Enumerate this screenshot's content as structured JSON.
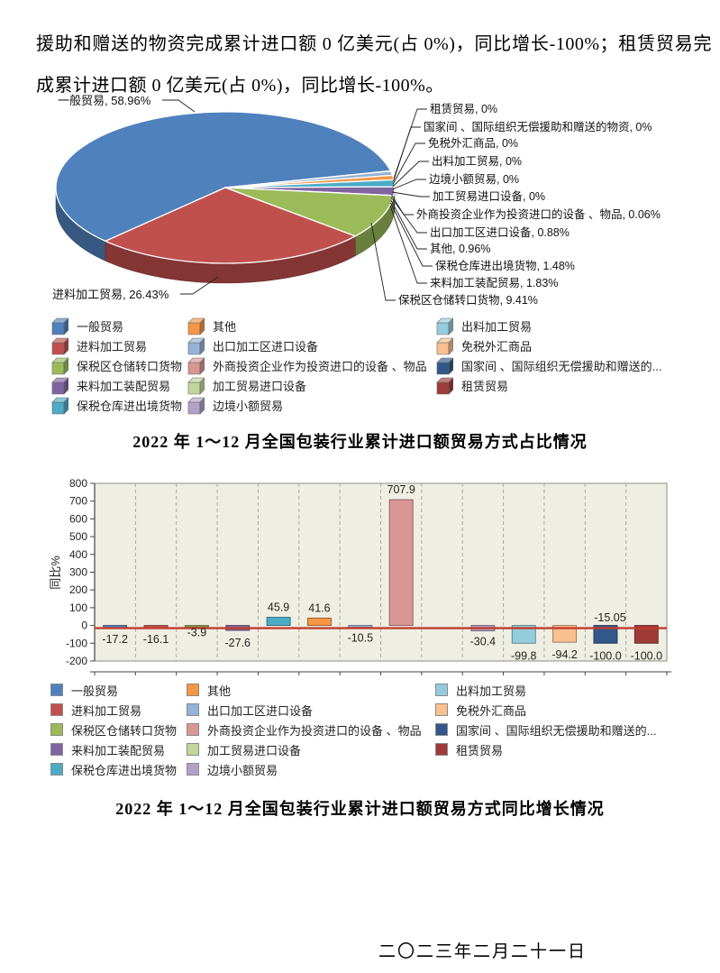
{
  "intro_text": "援助和赠送的物资完成累计进口额 0 亿美元(占 0%)，同比增长-100%；租赁贸易完成累计进口额 0 亿美元(占 0%)，同比增长-100%。",
  "date_line": "二〇二三年二月二十一日",
  "legend": {
    "items": [
      {
        "label": "一般贸易",
        "color": "#4F81BD"
      },
      {
        "label": "进料加工贸易",
        "color": "#C0504D"
      },
      {
        "label": "保税区仓储转口货物",
        "color": "#9BBB59"
      },
      {
        "label": "来料加工装配贸易",
        "color": "#8064A2"
      },
      {
        "label": "保税仓库进出境货物",
        "color": "#4BACC6"
      },
      {
        "label": "其他",
        "color": "#F79646"
      },
      {
        "label": "出口加工区进口设备",
        "color": "#95B3D7"
      },
      {
        "label": "外商投资企业作为投资进口的设备 、物品",
        "color": "#D99694"
      },
      {
        "label": "加工贸易进口设备",
        "color": "#C3D69B"
      },
      {
        "label": "边境小额贸易",
        "color": "#B2A1C7"
      },
      {
        "label": "出料加工贸易",
        "color": "#93CDDD"
      },
      {
        "label": "免税外汇商品",
        "color": "#FAC090"
      },
      {
        "label": "国家间 、国际组织无偿援助和赠送的...",
        "color": "#31588A"
      },
      {
        "label": "租赁贸易",
        "color": "#9E3B38"
      }
    ],
    "columns": [
      [
        0,
        1,
        2,
        3,
        4
      ],
      [
        5,
        6,
        7,
        8,
        9
      ],
      [
        10,
        11,
        12,
        13
      ]
    ]
  },
  "chart_data": [
    {
      "type": "pie",
      "title": "2022 年 1～12 月全国包装行业累计进口额贸易方式占比情况",
      "unit": "%",
      "slices": [
        {
          "name": "一般贸易",
          "pct": 58.96,
          "color": "#4F81BD"
        },
        {
          "name": "进料加工贸易",
          "pct": 26.43,
          "color": "#C0504D"
        },
        {
          "name": "保税区仓储转口货物",
          "pct": 9.41,
          "color": "#9BBB59"
        },
        {
          "name": "来料加工装配贸易",
          "pct": 1.83,
          "color": "#8064A2"
        },
        {
          "name": "保税仓库进出境货物",
          "pct": 1.48,
          "color": "#4BACC6"
        },
        {
          "name": "其他",
          "pct": 0.96,
          "color": "#F79646"
        },
        {
          "name": "出口加工区进口设备",
          "pct": 0.88,
          "color": "#95B3D7"
        },
        {
          "name": "外商投资企业作为投资进口的设备 、物品",
          "pct": 0.06,
          "color": "#D99694"
        },
        {
          "name": "加工贸易进口设备",
          "pct": 0,
          "color": "#C3D69B"
        },
        {
          "name": "边境小额贸易",
          "pct": 0,
          "color": "#B2A1C7"
        },
        {
          "name": "出料加工贸易",
          "pct": 0,
          "color": "#93CDDD"
        },
        {
          "name": "免税外汇商品",
          "pct": 0,
          "color": "#FAC090"
        },
        {
          "name": "国家间 、国际组织无偿援助和赠送的物资",
          "pct": 0,
          "color": "#31588A"
        },
        {
          "name": "租赁贸易",
          "pct": 0,
          "color": "#9E3B38"
        }
      ],
      "callout_labels_right": [
        "租赁贸易, 0%",
        "国家间 、国际组织无偿援助和赠送的物资, 0%",
        "免税外汇商品, 0%",
        "出料加工贸易, 0%",
        "边境小额贸易, 0%",
        "加工贸易进口设备, 0%",
        "外商投资企业作为投资进口的设备 、物品, 0.06%",
        "出口加工区进口设备, 0.88%",
        "其他, 0.96%",
        "保税仓库进出境货物, 1.48%",
        "来料加工装配贸易, 1.83%",
        "保税区仓储转口货物, 9.41%"
      ],
      "callout_labels_left": [
        "一般贸易, 58.96%",
        "进料加工贸易, 26.43%"
      ],
      "legend_position": "bottom"
    },
    {
      "type": "bar",
      "title": "2022 年 1～12 月全国包装行业累计进口额贸易方式同比增长情况",
      "ylabel": "同比%",
      "ylim": [
        -200,
        800
      ],
      "ytick_step": 100,
      "ytick_labels": [
        "800",
        "700",
        "600",
        "500",
        "400",
        "300",
        "200",
        "100",
        "0",
        "-100",
        "-200"
      ],
      "grid": "vertical-dashed",
      "legend_position": "bottom",
      "categories": [
        "一般贸易",
        "进料加工贸易",
        "保税区仓储转口货物",
        "来料加工装配贸易",
        "保税仓库进出境货物",
        "其他",
        "出口加工区进口设备",
        "外商投资企业作为投资进口的设备 、物品",
        "加工贸易进口设备",
        "边境小额贸易",
        "出料加工贸易",
        "免税外汇商品",
        "国家间 、国际组织无偿援助和赠送的物资",
        "租赁贸易"
      ],
      "values": [
        -17.2,
        -16.1,
        -3.9,
        -27.6,
        45.9,
        41.6,
        -10.5,
        707.9,
        null,
        -30.4,
        -99.8,
        -94.2,
        -100.0,
        -100.0
      ],
      "bar_labels": [
        "-17.2",
        "-16.1",
        "-3.9",
        "-27.6",
        "45.9",
        "41.6",
        "-10.5",
        "707.9",
        "",
        "-30.4",
        "-99.8",
        "-94.2",
        "-100.0",
        "-100.0"
      ],
      "colors": [
        "#4F81BD",
        "#C0504D",
        "#9BBB59",
        "#8064A2",
        "#4BACC6",
        "#F79646",
        "#95B3D7",
        "#D99694",
        "#C3D69B",
        "#B2A1C7",
        "#93CDDD",
        "#FAC090",
        "#31588A",
        "#9E3B38"
      ],
      "reference_line": {
        "value": -15.05,
        "label": "-15.05",
        "color": "#C23B2E"
      },
      "plot_bg": "#EFEEE3"
    }
  ]
}
